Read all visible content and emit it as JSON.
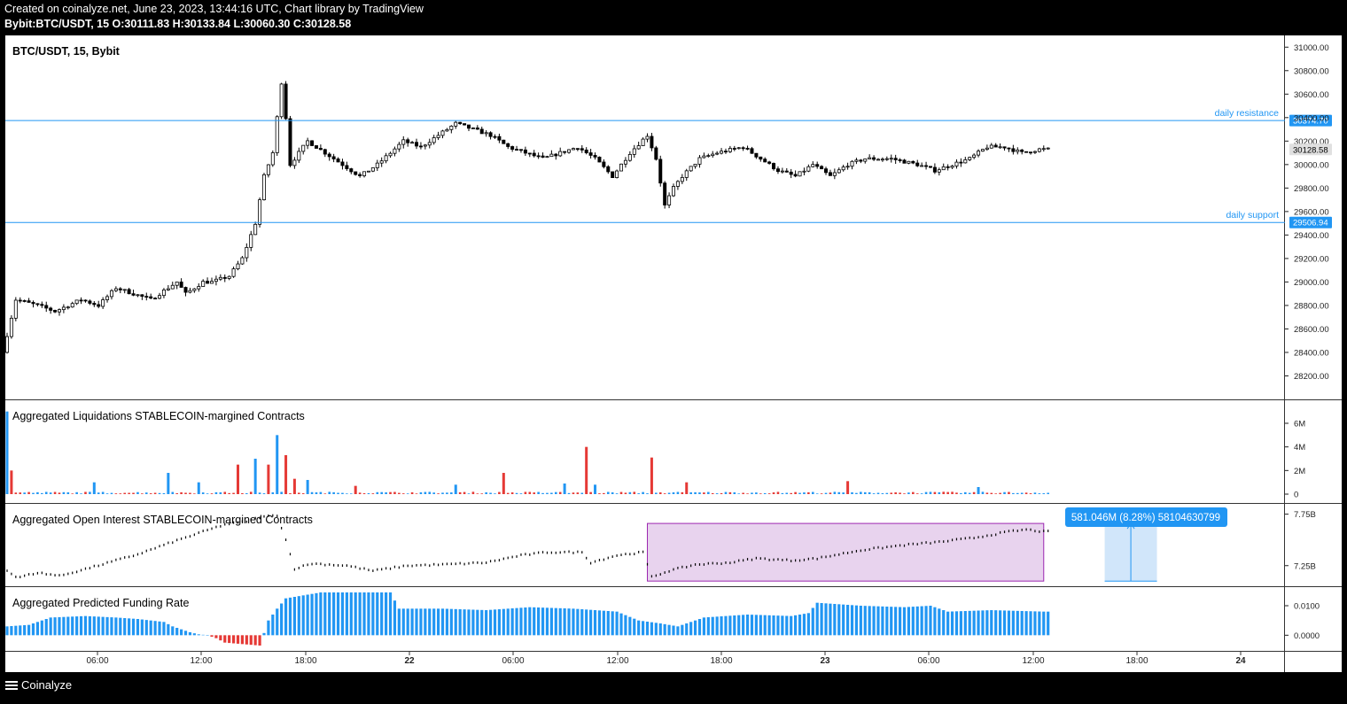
{
  "header": {
    "line1": "Created on coinalyze.net, June 23, 2023, 13:44:16 UTC, Chart library by TradingView",
    "line2": "Bybit:BTC/USDT, 15 O:30111.83 H:30133.84 L:30060.30 C:30128.58"
  },
  "footer": {
    "brand": "Coinalyze"
  },
  "colors": {
    "up": "#000000",
    "down": "#000000",
    "accent": "#2196f3",
    "red": "#e53935",
    "highlight": "#e8d3ee",
    "highlight_border": "#9c27b0",
    "measure": "#d1e6fa"
  },
  "chart_data": [
    {
      "type": "candlestick",
      "title": "BTC/USDT, 15, Bybit",
      "ylim": [
        28000,
        31100
      ],
      "yticks": [
        "31000.00",
        "30800.00",
        "30600.00",
        "30400.00",
        "30200.00",
        "30000.00",
        "29800.00",
        "29600.00",
        "29400.00",
        "29200.00",
        "29000.00",
        "28800.00",
        "28600.00",
        "28400.00",
        "28200.00"
      ],
      "ytick_values": [
        31000,
        30800,
        30600,
        30400,
        30200,
        30000,
        29800,
        29600,
        29400,
        29200,
        29000,
        28800,
        28600,
        28400,
        28200
      ],
      "last_price": "30128.58",
      "lines": [
        {
          "name": "daily resistance",
          "value": 30374.7,
          "label": "30374.70"
        },
        {
          "name": "daily support",
          "value": 29506.94,
          "label": "29506.94"
        }
      ],
      "path": [
        [
          0,
          28400
        ],
        [
          3,
          28850
        ],
        [
          8,
          28800
        ],
        [
          12,
          28750
        ],
        [
          18,
          28850
        ],
        [
          22,
          28800
        ],
        [
          26,
          28950
        ],
        [
          30,
          28900
        ],
        [
          34,
          28850
        ],
        [
          40,
          29000
        ],
        [
          42,
          28900
        ],
        [
          46,
          29000
        ],
        [
          48,
          29000
        ],
        [
          52,
          29050
        ],
        [
          55,
          29200
        ],
        [
          58,
          29500
        ],
        [
          60,
          29900
        ],
        [
          62,
          30100
        ],
        [
          64,
          30700
        ],
        [
          65,
          30400
        ],
        [
          66,
          30000
        ],
        [
          68,
          30100
        ],
        [
          70,
          30200
        ],
        [
          74,
          30100
        ],
        [
          78,
          30000
        ],
        [
          82,
          29900
        ],
        [
          86,
          30000
        ],
        [
          92,
          30200
        ],
        [
          96,
          30150
        ],
        [
          100,
          30250
        ],
        [
          104,
          30350
        ],
        [
          108,
          30300
        ],
        [
          112,
          30250
        ],
        [
          116,
          30150
        ],
        [
          120,
          30100
        ],
        [
          124,
          30050
        ],
        [
          128,
          30100
        ],
        [
          132,
          30150
        ],
        [
          136,
          30050
        ],
        [
          140,
          29900
        ],
        [
          144,
          30100
        ],
        [
          148,
          30250
        ],
        [
          150,
          30050
        ],
        [
          152,
          29650
        ],
        [
          154,
          29800
        ],
        [
          156,
          29900
        ],
        [
          160,
          30050
        ],
        [
          164,
          30100
        ],
        [
          170,
          30150
        ],
        [
          174,
          30050
        ],
        [
          178,
          29950
        ],
        [
          182,
          29900
        ],
        [
          186,
          30000
        ],
        [
          190,
          29900
        ],
        [
          194,
          30000
        ],
        [
          198,
          30050
        ],
        [
          204,
          30050
        ],
        [
          210,
          30000
        ],
        [
          214,
          29950
        ],
        [
          218,
          30000
        ],
        [
          222,
          30050
        ],
        [
          226,
          30150
        ],
        [
          230,
          30150
        ],
        [
          234,
          30100
        ],
        [
          238,
          30130
        ]
      ],
      "n": 240,
      "seed": 7
    },
    {
      "type": "bar",
      "title": "Aggregated Liquidations STABLECOIN-margined Contracts",
      "yticks": [
        "6M",
        "4M",
        "2M",
        "0"
      ],
      "ytick_values": [
        6,
        4,
        2,
        0
      ],
      "ylim": [
        0,
        7.2
      ],
      "spikes": [
        [
          0,
          7.0,
          "b"
        ],
        [
          1,
          2.0,
          "r"
        ],
        [
          20,
          1.0,
          "b"
        ],
        [
          37,
          1.8,
          "b"
        ],
        [
          44,
          1.0,
          "b"
        ],
        [
          53,
          2.5,
          "r"
        ],
        [
          57,
          3.0,
          "b"
        ],
        [
          60,
          2.5,
          "r"
        ],
        [
          62,
          5.0,
          "b"
        ],
        [
          64,
          3.3,
          "r"
        ],
        [
          66,
          1.3,
          "r"
        ],
        [
          69,
          1.2,
          "b"
        ],
        [
          80,
          0.7,
          "r"
        ],
        [
          103,
          0.8,
          "b"
        ],
        [
          114,
          1.8,
          "r"
        ],
        [
          128,
          0.9,
          "b"
        ],
        [
          133,
          4.0,
          "r"
        ],
        [
          135,
          0.8,
          "b"
        ],
        [
          148,
          3.1,
          "r"
        ],
        [
          156,
          1.0,
          "r"
        ],
        [
          193,
          1.1,
          "r"
        ],
        [
          223,
          0.6,
          "b"
        ]
      ]
    },
    {
      "type": "line",
      "title": "Aggregated Open Interest STABLECOIN-margined Contracts",
      "yticks": [
        "7.75B",
        "7.25B"
      ],
      "ytick_values": [
        7.75,
        7.25
      ],
      "ylim": [
        7.05,
        7.85
      ],
      "path": [
        [
          0,
          7.2
        ],
        [
          2,
          7.14
        ],
        [
          8,
          7.18
        ],
        [
          12,
          7.15
        ],
        [
          20,
          7.24
        ],
        [
          30,
          7.36
        ],
        [
          38,
          7.48
        ],
        [
          45,
          7.58
        ],
        [
          50,
          7.65
        ],
        [
          55,
          7.68
        ],
        [
          58,
          7.72
        ],
        [
          62,
          7.74
        ],
        [
          64,
          7.5
        ],
        [
          66,
          7.22
        ],
        [
          70,
          7.27
        ],
        [
          78,
          7.25
        ],
        [
          84,
          7.2
        ],
        [
          92,
          7.25
        ],
        [
          100,
          7.26
        ],
        [
          110,
          7.28
        ],
        [
          118,
          7.35
        ],
        [
          124,
          7.38
        ],
        [
          132,
          7.38
        ],
        [
          134,
          7.28
        ],
        [
          140,
          7.35
        ],
        [
          146,
          7.38
        ],
        [
          148,
          7.14
        ],
        [
          152,
          7.2
        ],
        [
          158,
          7.26
        ],
        [
          166,
          7.28
        ],
        [
          172,
          7.32
        ],
        [
          180,
          7.3
        ],
        [
          186,
          7.32
        ],
        [
          196,
          7.4
        ],
        [
          206,
          7.45
        ],
        [
          214,
          7.48
        ],
        [
          222,
          7.52
        ],
        [
          230,
          7.58
        ],
        [
          234,
          7.6
        ],
        [
          238,
          7.58
        ]
      ]
    },
    {
      "type": "bar",
      "title": "Aggregated Predicted Funding Rate",
      "yticks": [
        "0.0100",
        "0.0000"
      ],
      "ytick_values": [
        0.01,
        0.0
      ],
      "ylim": [
        -0.005,
        0.0145
      ],
      "path": [
        [
          0,
          0.003
        ],
        [
          5,
          0.0035
        ],
        [
          10,
          0.006
        ],
        [
          18,
          0.0065
        ],
        [
          25,
          0.006
        ],
        [
          30,
          0.0055
        ],
        [
          36,
          0.0045
        ],
        [
          38,
          0.003
        ],
        [
          40,
          0.002
        ],
        [
          42,
          0.001
        ],
        [
          44,
          0.0003
        ],
        [
          46,
          0.0
        ],
        [
          48,
          -0.001
        ],
        [
          50,
          -0.0025
        ],
        [
          54,
          -0.003
        ],
        [
          58,
          -0.0035
        ],
        [
          60,
          0.005
        ],
        [
          62,
          0.009
        ],
        [
          64,
          0.0125
        ],
        [
          72,
          0.0145
        ],
        [
          80,
          0.0145
        ],
        [
          88,
          0.0145
        ],
        [
          90,
          0.009
        ],
        [
          100,
          0.009
        ],
        [
          110,
          0.0085
        ],
        [
          120,
          0.0095
        ],
        [
          130,
          0.009
        ],
        [
          140,
          0.008
        ],
        [
          145,
          0.005
        ],
        [
          150,
          0.004
        ],
        [
          154,
          0.003
        ],
        [
          160,
          0.006
        ],
        [
          170,
          0.007
        ],
        [
          180,
          0.0065
        ],
        [
          184,
          0.0075
        ],
        [
          186,
          0.011
        ],
        [
          196,
          0.01
        ],
        [
          206,
          0.0095
        ],
        [
          212,
          0.01
        ],
        [
          216,
          0.008
        ],
        [
          226,
          0.0085
        ],
        [
          238,
          0.008
        ]
      ]
    }
  ],
  "xaxis": {
    "ticks": [
      {
        "label": "06:00",
        "bold": false
      },
      {
        "label": "12:00",
        "bold": false
      },
      {
        "label": "18:00",
        "bold": false
      },
      {
        "label": "22",
        "bold": true
      },
      {
        "label": "06:00",
        "bold": false
      },
      {
        "label": "12:00",
        "bold": false
      },
      {
        "label": "18:00",
        "bold": false
      },
      {
        "label": "23",
        "bold": true
      },
      {
        "label": "06:00",
        "bold": false
      },
      {
        "label": "12:00",
        "bold": false
      },
      {
        "label": "18:00",
        "bold": false
      },
      {
        "label": "24",
        "bold": true
      }
    ]
  },
  "annotations": {
    "highlight_box": {
      "x_start": 147,
      "x_end": 238,
      "y_top": 7.66,
      "y_bottom": 7.1
    },
    "measure": {
      "label": "581.046M (8.28%) 58104630799",
      "x_start": 252,
      "x_end": 264,
      "y_top": 7.66,
      "y_bottom": 7.1
    }
  }
}
